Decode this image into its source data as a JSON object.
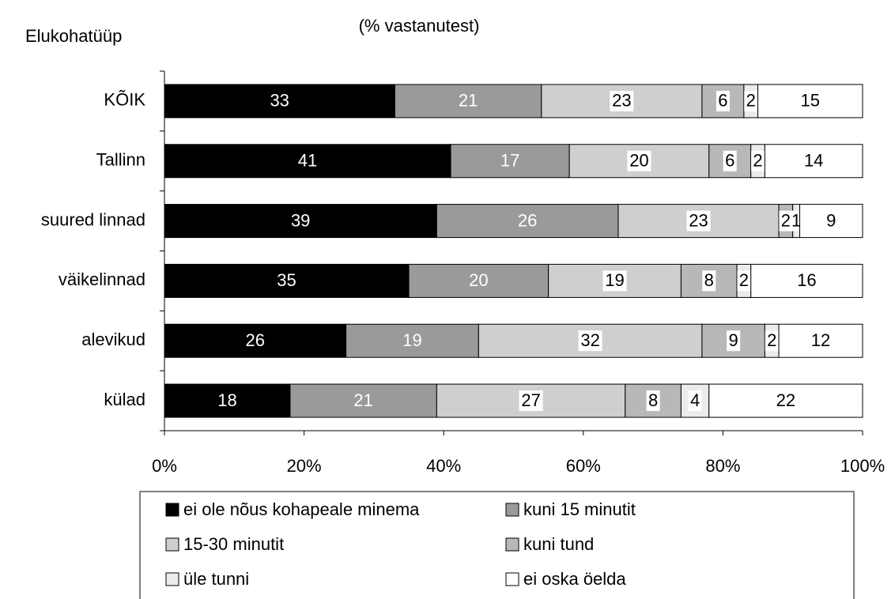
{
  "chart_data": {
    "type": "stacked_bar_horizontal",
    "title": "(% vastanutest)",
    "y_label": "Elukohatüüp",
    "categories": [
      "KÕIK",
      "Tallinn",
      "suured linnad",
      "väikelinnad",
      "alevikud",
      "külad"
    ],
    "series": [
      {
        "name": "ei ole nõus kohapeale minema",
        "color": "#000000",
        "values": [
          33,
          41,
          39,
          35,
          26,
          18
        ]
      },
      {
        "name": "kuni 15 minutit",
        "color": "#9a9a9a",
        "values": [
          21,
          17,
          26,
          20,
          19,
          21
        ]
      },
      {
        "name": "15-30 minutit",
        "color": "#cfcfcf",
        "values": [
          23,
          20,
          23,
          19,
          32,
          27
        ]
      },
      {
        "name": "kuni tund",
        "color": "#b8b8b8",
        "values": [
          6,
          6,
          2,
          8,
          9,
          8
        ]
      },
      {
        "name": "üle tunni",
        "color": "#ebebeb",
        "values": [
          2,
          2,
          1,
          2,
          2,
          4
        ]
      },
      {
        "name": "ei oska öelda",
        "color": "#ffffff",
        "values": [
          15,
          14,
          9,
          16,
          12,
          22
        ]
      }
    ],
    "xlim": [
      0,
      100
    ],
    "xticks": [
      {
        "value": 0,
        "label": "0%"
      },
      {
        "value": 20,
        "label": "20%"
      },
      {
        "value": 40,
        "label": "40%"
      },
      {
        "value": 60,
        "label": "60%"
      },
      {
        "value": 80,
        "label": "80%"
      },
      {
        "value": 100,
        "label": "100%"
      }
    ],
    "legend": "bottom"
  }
}
